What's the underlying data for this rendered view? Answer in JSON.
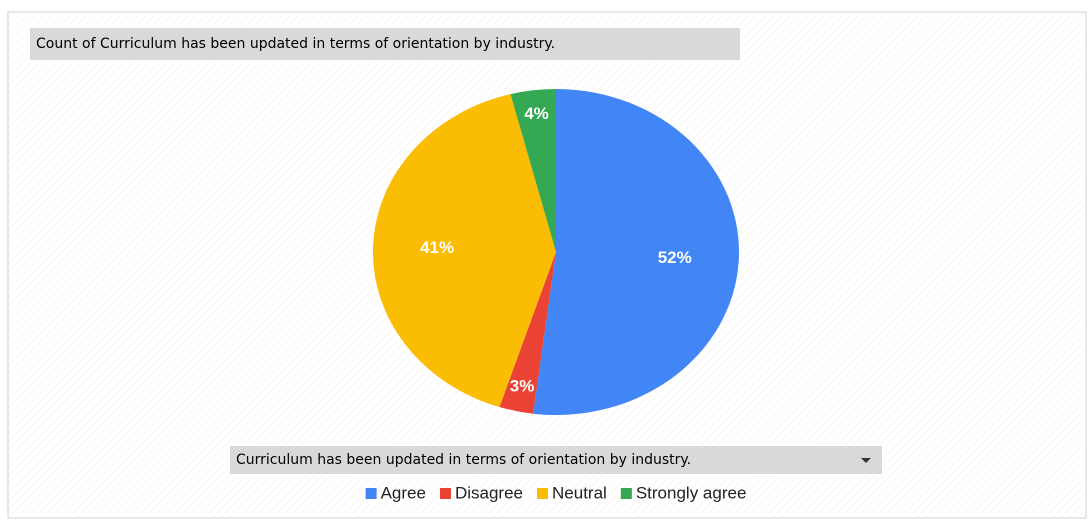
{
  "chart_data": {
    "type": "pie",
    "title": "Count of Curriculum has been updated in terms of orientation by industry.",
    "legend_title": "Curriculum has been updated in terms of orientation by industry.",
    "categories": [
      "Agree",
      "Disagree",
      "Neutral",
      "Strongly agree"
    ],
    "values": [
      52,
      3,
      41,
      4
    ],
    "value_labels": [
      "52%",
      "3%",
      "41%",
      "4%"
    ],
    "colors": [
      "#4285f4",
      "#ea4335",
      "#fbbc04",
      "#34a853"
    ],
    "legend": "bottom"
  }
}
